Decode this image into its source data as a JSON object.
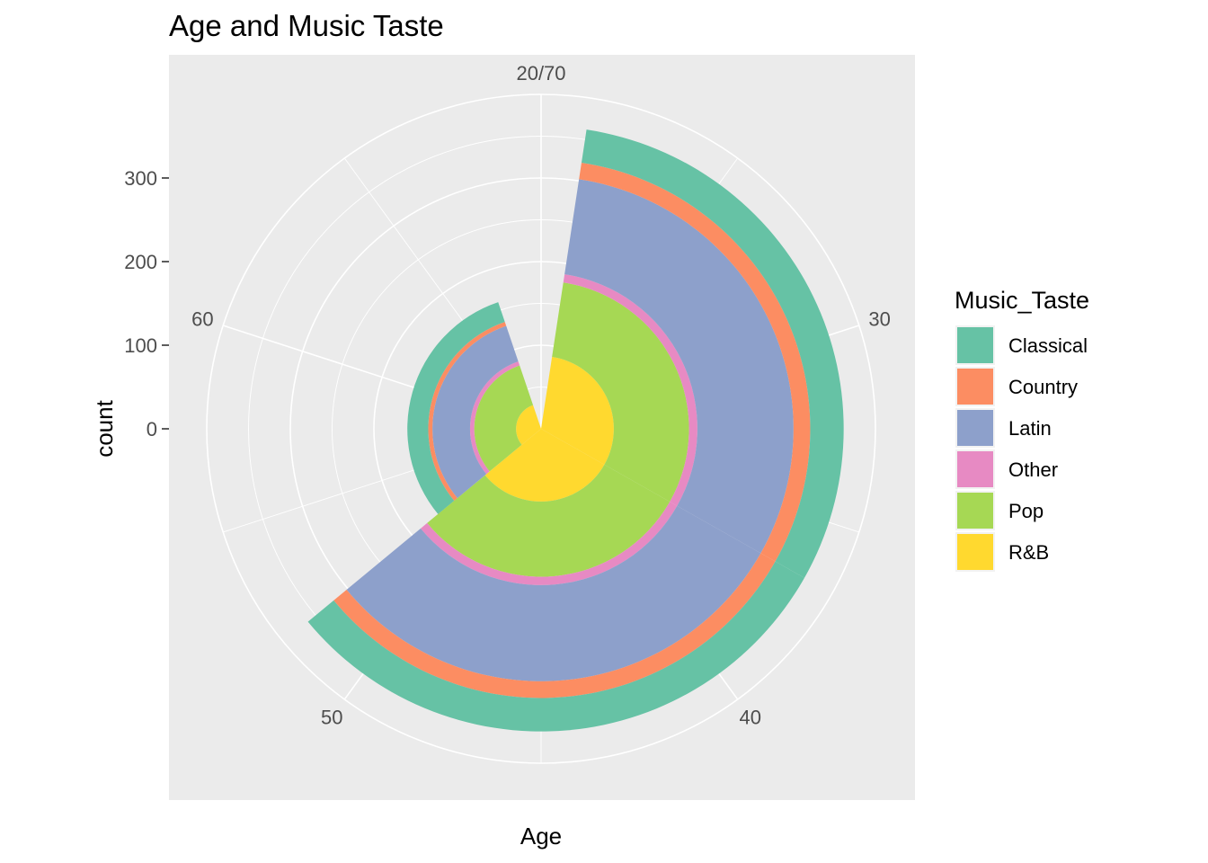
{
  "chart_data": {
    "type": "stacked-polar-bar",
    "title": "Age and Music Taste",
    "xlabel": "Age",
    "ylabel": "count",
    "x_range": [
      20,
      70
    ],
    "x_ticks": [
      {
        "value": 20,
        "label": "20/70"
      },
      {
        "value": 30,
        "label": "30"
      },
      {
        "value": 40,
        "label": "40"
      },
      {
        "value": 50,
        "label": "50"
      },
      {
        "value": 60,
        "label": "60"
      }
    ],
    "y_range": [
      0,
      400
    ],
    "y_ticks": [
      0,
      100,
      200,
      300
    ],
    "bins": [
      {
        "x0": 21.2,
        "x1": 36.6
      },
      {
        "x0": 36.6,
        "x1": 52.0
      },
      {
        "x0": 52.0,
        "x1": 67.4
      }
    ],
    "legend": {
      "title": "Music_Taste",
      "placement": "right"
    },
    "series": [
      {
        "name": "Classical",
        "color": "#66C2A5",
        "values": [
          40,
          40,
          25
        ]
      },
      {
        "name": "Country",
        "color": "#FC8D62",
        "values": [
          20,
          20,
          5
        ]
      },
      {
        "name": "Latin",
        "color": "#8DA0CB",
        "values": [
          115,
          115,
          45
        ]
      },
      {
        "name": "Other",
        "color": "#E78AC3",
        "values": [
          10,
          10,
          5
        ]
      },
      {
        "name": "Pop",
        "color": "#A6D854",
        "values": [
          90,
          90,
          50
        ]
      },
      {
        "name": "R&B",
        "color": "#FFD92F",
        "values": [
          87,
          87,
          30
        ]
      }
    ]
  }
}
